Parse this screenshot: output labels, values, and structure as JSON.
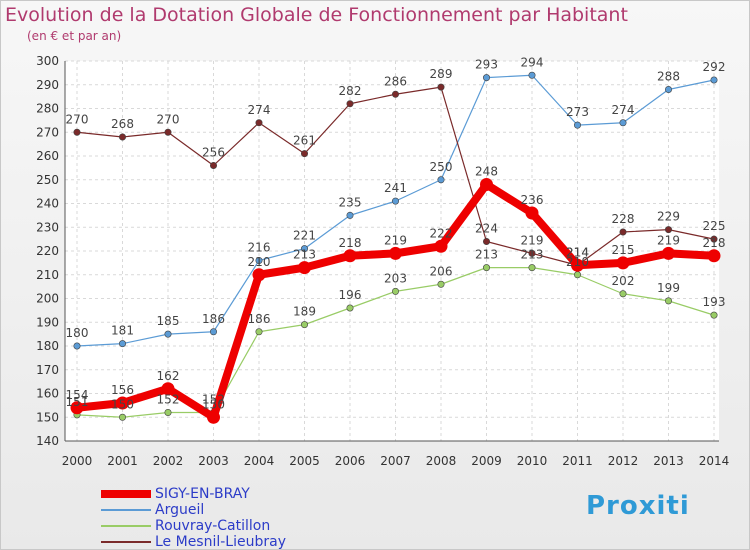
{
  "chart_data": {
    "type": "line",
    "title": "Evolution de la Dotation Globale de Fonctionnement par Habitant",
    "subtitle": "(en € et par an)",
    "categories": [
      "2000",
      "2001",
      "2002",
      "2003",
      "2004",
      "2005",
      "2006",
      "2007",
      "2008",
      "2009",
      "2010",
      "2011",
      "2012",
      "2013",
      "2014"
    ],
    "yticks": [
      "140",
      "150",
      "160",
      "170",
      "180",
      "190",
      "200",
      "210",
      "220",
      "230",
      "240",
      "250",
      "260",
      "270",
      "280",
      "290",
      "300"
    ],
    "ylim": [
      140,
      300
    ],
    "grid": true,
    "legend_position": "bottom-left",
    "series": [
      {
        "name": "SIGY-EN-BRAY",
        "color": "#ee0000",
        "values": [
          154,
          156,
          162,
          150,
          210,
          213,
          218,
          219,
          222,
          248,
          236,
          214,
          215,
          219,
          218
        ]
      },
      {
        "name": "Argueil",
        "color": "#5b9bd5",
        "values": [
          180,
          181,
          185,
          186,
          216,
          221,
          235,
          241,
          250,
          293,
          294,
          273,
          274,
          288,
          292
        ]
      },
      {
        "name": "Rouvray-Catillon",
        "color": "#99cc66",
        "values": [
          151,
          150,
          152,
          152,
          186,
          189,
          196,
          203,
          206,
          213,
          213,
          210,
          202,
          199,
          193
        ]
      },
      {
        "name": "Le Mesnil-Lieubray",
        "color": "#7a2a2a",
        "values": [
          270,
          268,
          270,
          256,
          274,
          261,
          282,
          286,
          289,
          224,
          219,
          214,
          228,
          229,
          225
        ]
      }
    ],
    "data_labels": {
      "SIGY-EN-BRAY": [
        "154",
        "156",
        "162",
        "150",
        "210",
        "213",
        "218",
        "219",
        "222",
        "248",
        "236",
        "214",
        "215",
        "219",
        "218"
      ],
      "Argueil": [
        "180",
        "181",
        "185",
        "186",
        "216",
        "221",
        "235",
        "241",
        "250",
        "293",
        "294",
        "273",
        "274",
        "288",
        "292"
      ],
      "Rouvray-Catillon": [
        "151",
        "150",
        "152",
        "152",
        "186",
        "189",
        "196",
        "203",
        "206",
        "213",
        "213",
        "210",
        "202",
        "199",
        "193"
      ],
      "Le Mesnil-Lieubray": [
        "270",
        "268",
        "270",
        "256",
        "274",
        "261",
        "282",
        "286",
        "289",
        "224",
        "219",
        "214",
        "228",
        "229",
        "225"
      ]
    }
  },
  "logo_text": "Proxiti"
}
